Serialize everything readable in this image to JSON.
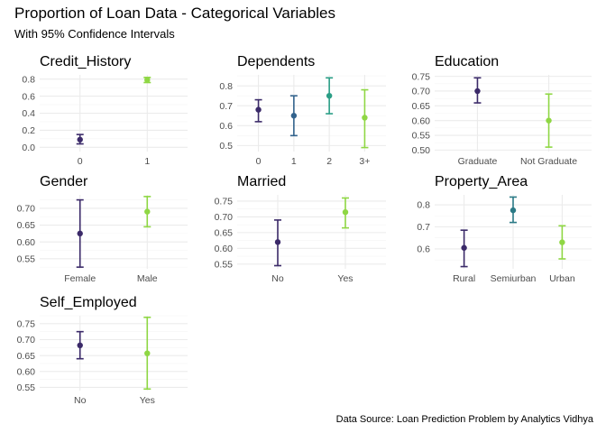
{
  "title": "Proportion of Loan Data - Categorical Variables",
  "subtitle": "With 95% Confidence Intervals",
  "caption": "Data Source: Loan Prediction Problem by Analytics Vidhya",
  "colors": {
    "c1": "#3b2a69",
    "c2": "#33638d",
    "c3": "#2b9e86",
    "c4": "#8fd744",
    "c_mid": "#2b7a86"
  },
  "chart_data": [
    {
      "type": "scatter",
      "title": "Credit_History",
      "categories": [
        "0",
        "1"
      ],
      "values": [
        0.09,
        0.79
      ],
      "ci_low": [
        0.04,
        0.76
      ],
      "ci_high": [
        0.15,
        0.82
      ],
      "yticks": [
        "0.0",
        "0.2",
        "0.4",
        "0.6",
        "0.8"
      ],
      "ylim": [
        -0.05,
        0.85
      ],
      "colors": [
        "#3b2a69",
        "#8fd744"
      ]
    },
    {
      "type": "scatter",
      "title": "Dependents",
      "categories": [
        "0",
        "1",
        "2",
        "3+"
      ],
      "values": [
        0.68,
        0.65,
        0.75,
        0.64
      ],
      "ci_low": [
        0.62,
        0.55,
        0.66,
        0.49
      ],
      "ci_high": [
        0.73,
        0.75,
        0.84,
        0.78
      ],
      "yticks": [
        "0.5",
        "0.6",
        "0.7",
        "0.8"
      ],
      "ylim": [
        0.47,
        0.855
      ],
      "colors": [
        "#3b2a69",
        "#33638d",
        "#2b9e86",
        "#8fd744"
      ]
    },
    {
      "type": "scatter",
      "title": "Education",
      "categories": [
        "Graduate",
        "Not Graduate"
      ],
      "values": [
        0.7,
        0.6
      ],
      "ci_low": [
        0.66,
        0.51
      ],
      "ci_high": [
        0.745,
        0.69
      ],
      "yticks": [
        "0.50",
        "0.55",
        "0.60",
        "0.65",
        "0.70",
        "0.75"
      ],
      "ylim": [
        0.495,
        0.755
      ],
      "colors": [
        "#3b2a69",
        "#8fd744"
      ]
    },
    {
      "type": "scatter",
      "title": "Gender",
      "categories": [
        "Female",
        "Male"
      ],
      "values": [
        0.625,
        0.69
      ],
      "ci_low": [
        0.525,
        0.645
      ],
      "ci_high": [
        0.725,
        0.735
      ],
      "yticks": [
        "0.55",
        "0.60",
        "0.65",
        "0.70"
      ],
      "ylim": [
        0.52,
        0.74
      ],
      "colors": [
        "#3b2a69",
        "#8fd744"
      ]
    },
    {
      "type": "scatter",
      "title": "Married",
      "categories": [
        "No",
        "Yes"
      ],
      "values": [
        0.62,
        0.715
      ],
      "ci_low": [
        0.545,
        0.665
      ],
      "ci_high": [
        0.69,
        0.76
      ],
      "yticks": [
        "0.55",
        "0.60",
        "0.65",
        "0.70",
        "0.75"
      ],
      "ylim": [
        0.535,
        0.77
      ],
      "colors": [
        "#3b2a69",
        "#8fd744"
      ]
    },
    {
      "type": "scatter",
      "title": "Property_Area",
      "categories": [
        "Rural",
        "Semiurban",
        "Urban"
      ],
      "values": [
        0.605,
        0.775,
        0.63
      ],
      "ci_low": [
        0.52,
        0.72,
        0.555
      ],
      "ci_high": [
        0.685,
        0.835,
        0.705
      ],
      "yticks": [
        "0.6",
        "0.7",
        "0.8"
      ],
      "ylim": [
        0.51,
        0.845
      ],
      "colors": [
        "#3b2a69",
        "#2b7a86",
        "#8fd744"
      ]
    },
    {
      "type": "scatter",
      "title": "Self_Employed",
      "categories": [
        "No",
        "Yes"
      ],
      "values": [
        0.682,
        0.657
      ],
      "ci_low": [
        0.64,
        0.545
      ],
      "ci_high": [
        0.725,
        0.77
      ],
      "yticks": [
        "0.55",
        "0.60",
        "0.65",
        "0.70",
        "0.75"
      ],
      "ylim": [
        0.54,
        0.775
      ],
      "colors": [
        "#3b2a69",
        "#8fd744"
      ]
    }
  ]
}
